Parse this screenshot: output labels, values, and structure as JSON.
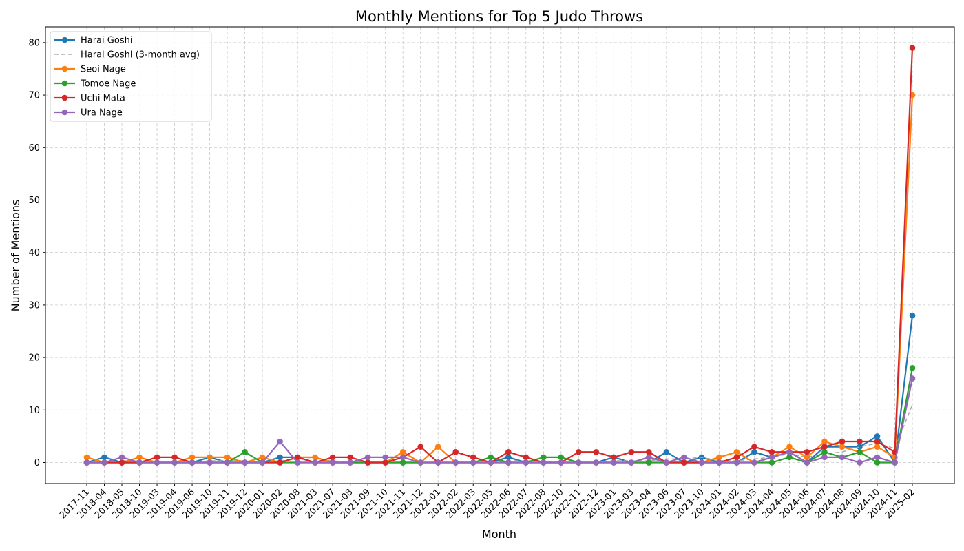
{
  "chart_data": {
    "type": "line",
    "title": "Monthly Mentions for Top 5 Judo Throws",
    "xlabel": "Month",
    "ylabel": "Number of Mentions",
    "ylim": [
      -4,
      83
    ],
    "yticks": [
      0,
      10,
      20,
      30,
      40,
      50,
      60,
      70,
      80
    ],
    "grid": true,
    "legend_position": "top-left",
    "categories": [
      "2017-11",
      "2018-04",
      "2018-05",
      "2018-10",
      "2019-03",
      "2019-04",
      "2019-06",
      "2019-10",
      "2019-11",
      "2019-12",
      "2020-01",
      "2020-02",
      "2020-08",
      "2021-03",
      "2021-07",
      "2021-08",
      "2021-09",
      "2021-10",
      "2021-11",
      "2021-12",
      "2022-01",
      "2022-02",
      "2022-03",
      "2022-05",
      "2022-06",
      "2022-07",
      "2022-08",
      "2022-10",
      "2022-11",
      "2022-12",
      "2023-01",
      "2023-03",
      "2023-04",
      "2023-06",
      "2023-07",
      "2023-10",
      "2024-01",
      "2024-02",
      "2024-03",
      "2024-04",
      "2024-05",
      "2024-06",
      "2024-07",
      "2024-08",
      "2024-09",
      "2024-10",
      "2024-11",
      "2025-02"
    ],
    "series": [
      {
        "name": "Harai Goshi",
        "color": "#1f77b4",
        "style": "solid",
        "marker": true,
        "values": [
          0,
          1,
          0,
          0,
          0,
          0,
          0,
          1,
          0,
          0,
          0,
          1,
          1,
          0,
          0,
          0,
          0,
          0,
          0,
          0,
          0,
          0,
          0,
          0,
          1,
          0,
          0,
          0,
          0,
          0,
          1,
          0,
          0,
          2,
          0,
          1,
          0,
          0,
          2,
          1,
          2,
          0,
          3,
          3,
          3,
          5,
          0,
          28
        ]
      },
      {
        "name": "Harai Goshi (3-month avg)",
        "color": "#aaaaaa",
        "style": "dashed",
        "marker": false,
        "values": [
          null,
          null,
          0.33,
          0.33,
          0,
          0,
          0,
          0.33,
          0.33,
          0.33,
          0,
          0.33,
          0.67,
          0.67,
          0.33,
          0,
          0,
          0,
          0,
          0,
          0,
          0,
          0,
          0,
          0.33,
          0.33,
          0.33,
          0,
          0,
          0,
          0.33,
          0.33,
          0.33,
          0.67,
          0.67,
          1,
          0.33,
          0.33,
          0.67,
          1,
          1.67,
          1,
          1.67,
          2,
          3,
          3.67,
          2.67,
          11
        ]
      },
      {
        "name": "Seoi Nage",
        "color": "#ff7f0e",
        "style": "solid",
        "marker": true,
        "values": [
          1,
          0,
          0,
          1,
          0,
          0,
          1,
          1,
          1,
          0,
          1,
          0,
          1,
          1,
          0,
          0,
          0,
          0,
          2,
          0,
          3,
          0,
          0,
          0,
          0,
          0,
          0,
          0,
          0,
          0,
          0,
          0,
          1,
          0,
          0,
          0,
          1,
          2,
          0,
          1,
          3,
          1,
          4,
          3,
          2,
          3,
          1,
          70
        ]
      },
      {
        "name": "Tomoe Nage",
        "color": "#2ca02c",
        "style": "solid",
        "marker": true,
        "values": [
          0,
          0,
          0,
          0,
          0,
          0,
          0,
          0,
          0,
          2,
          0,
          0,
          0,
          0,
          0,
          0,
          0,
          0,
          0,
          0,
          0,
          0,
          0,
          1,
          0,
          0,
          1,
          1,
          0,
          0,
          0,
          0,
          0,
          0,
          0,
          0,
          0,
          0,
          0,
          0,
          1,
          0,
          2,
          1,
          2,
          0,
          0,
          18
        ]
      },
      {
        "name": "Uchi Mata",
        "color": "#d62728",
        "style": "solid",
        "marker": true,
        "values": [
          0,
          0,
          0,
          0,
          1,
          1,
          0,
          0,
          0,
          0,
          0,
          0,
          1,
          0,
          1,
          1,
          0,
          0,
          1,
          3,
          0,
          2,
          1,
          0,
          2,
          1,
          0,
          0,
          2,
          2,
          1,
          2,
          2,
          0,
          0,
          0,
          0,
          1,
          3,
          2,
          2,
          2,
          3,
          4,
          4,
          4,
          2,
          79
        ]
      },
      {
        "name": "Ura Nage",
        "color": "#9467bd",
        "style": "solid",
        "marker": true,
        "values": [
          0,
          0,
          1,
          0,
          0,
          0,
          0,
          0,
          0,
          0,
          0,
          4,
          0,
          0,
          0,
          0,
          1,
          1,
          1,
          0,
          0,
          0,
          0,
          0,
          0,
          0,
          0,
          0,
          0,
          0,
          0,
          0,
          1,
          0,
          1,
          0,
          0,
          0,
          0,
          1,
          2,
          0,
          1,
          1,
          0,
          1,
          0,
          16
        ]
      }
    ]
  }
}
